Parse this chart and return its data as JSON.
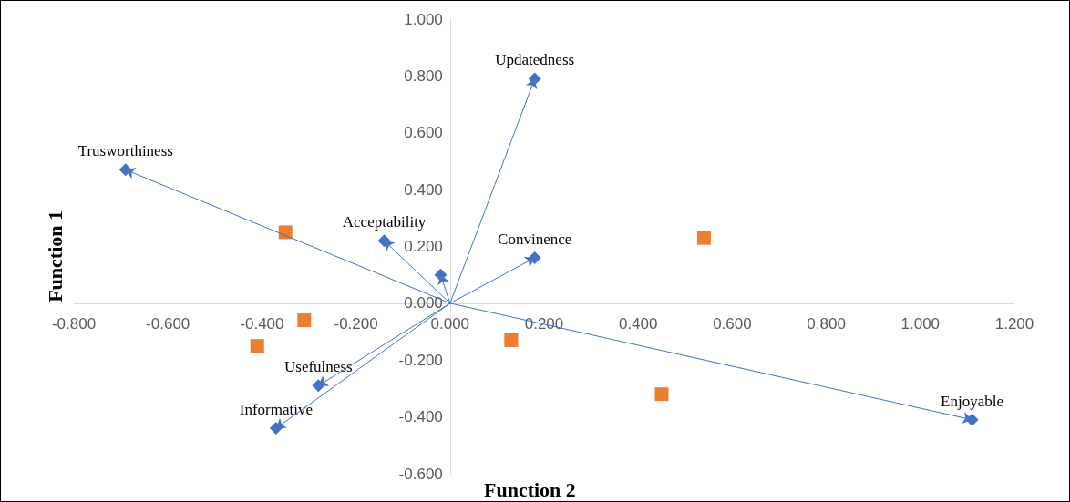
{
  "chart_data": {
    "type": "scatter",
    "xlabel": "Function 2",
    "ylabel": "Function 1",
    "xlim": [
      -0.8,
      1.2
    ],
    "xticks": [
      {
        "value": -0.8,
        "label": "-0.800"
      },
      {
        "value": -0.6,
        "label": "-0.600"
      },
      {
        "value": -0.4,
        "label": "-0.400"
      },
      {
        "value": -0.2,
        "label": "-0.200"
      },
      {
        "value": 0,
        "label": "0.000"
      },
      {
        "value": 0.2,
        "label": "0.200"
      },
      {
        "value": 0.4,
        "label": "0.400"
      },
      {
        "value": 0.6,
        "label": "0.600"
      },
      {
        "value": 0.8,
        "label": "0.800"
      },
      {
        "value": 1,
        "label": "1.000"
      },
      {
        "value": 1.2,
        "label": "1.200"
      }
    ],
    "ylim": [
      -0.6,
      1.0
    ],
    "yticks": [
      {
        "value": -0.6,
        "label": "-0.600"
      },
      {
        "value": -0.4,
        "label": "-0.400"
      },
      {
        "value": -0.2,
        "label": "-0.200"
      },
      {
        "value": 0,
        "label": "0.000"
      },
      {
        "value": 0.2,
        "label": "0.200"
      },
      {
        "value": 0.4,
        "label": "0.400"
      },
      {
        "value": 0.6,
        "label": "0.600"
      },
      {
        "value": 0.8,
        "label": "0.800"
      },
      {
        "value": 1,
        "label": "1.000"
      }
    ],
    "grid": false,
    "series": [
      {
        "color": "#4472c4",
        "marker": "diamond",
        "x": [
          -0.69,
          0.18,
          -0.14,
          0.18,
          -0.02,
          -0.28,
          -0.37,
          1.11
        ],
        "values": [
          0.47,
          0.79,
          0.22,
          0.16,
          0.1,
          -0.29,
          -0.44,
          -0.41
        ],
        "value_labels": [
          "Trusworthiness",
          "Updatedness",
          "Acceptability",
          "Convinence",
          null,
          "Usefulness",
          "Informative",
          "Enjoyable"
        ]
      },
      {
        "color": "#ed7d31",
        "marker": "square",
        "x": [
          0.54,
          -0.35,
          -0.31,
          -0.41,
          0.13,
          0.45
        ],
        "values": [
          0.23,
          0.25,
          -0.06,
          -0.15,
          -0.13,
          -0.32
        ]
      }
    ]
  }
}
